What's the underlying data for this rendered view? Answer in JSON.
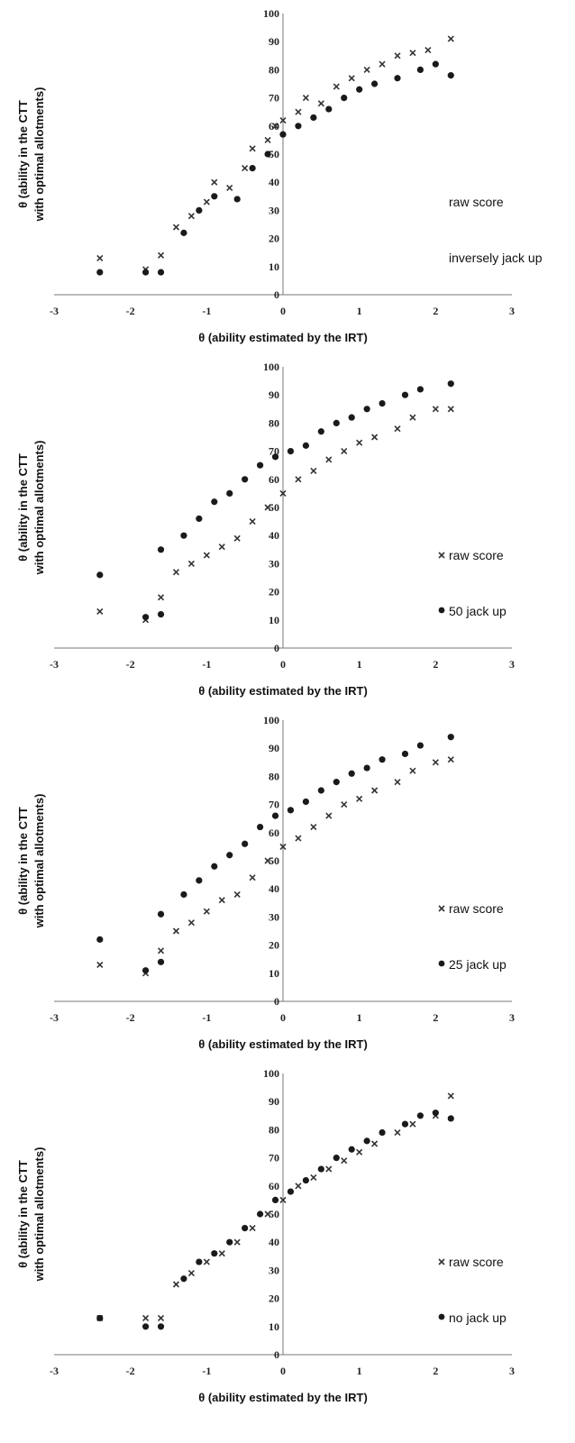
{
  "shared": {
    "xlabel": "θ (ability estimated by the IRT)",
    "ylabel_line1": "θ (ability  in the CTT",
    "ylabel_line2": "with optimal allotments)"
  },
  "chart_data": [
    {
      "type": "scatter",
      "xlim": [
        -3,
        3
      ],
      "ylim": [
        0,
        100
      ],
      "xticks": [
        "-3",
        "-2",
        "-1",
        "0",
        "1",
        "2",
        "3"
      ],
      "yticks": [
        "0",
        "10",
        "20",
        "30",
        "40",
        "50",
        "60",
        "70",
        "80",
        "90",
        "100"
      ],
      "xlabel": "θ (ability estimated by the IRT)",
      "ylabel": "θ (ability  in the CTT with optimal allotments)",
      "legend": [
        "raw score",
        "inversely jack up"
      ],
      "legend_position": "right",
      "series": [
        {
          "name": "raw score",
          "marker": "x",
          "points": [
            [
              -2.4,
              13
            ],
            [
              -1.8,
              9
            ],
            [
              -1.6,
              14
            ],
            [
              -1.4,
              24
            ],
            [
              -1.2,
              28
            ],
            [
              -1.0,
              33
            ],
            [
              -0.9,
              40
            ],
            [
              -0.7,
              38
            ],
            [
              -0.5,
              45
            ],
            [
              -0.4,
              52
            ],
            [
              -0.2,
              55
            ],
            [
              -0.1,
              60
            ],
            [
              0.0,
              62
            ],
            [
              0.2,
              65
            ],
            [
              0.3,
              70
            ],
            [
              0.5,
              68
            ],
            [
              0.7,
              74
            ],
            [
              0.9,
              77
            ],
            [
              1.1,
              80
            ],
            [
              1.3,
              82
            ],
            [
              1.5,
              85
            ],
            [
              1.7,
              86
            ],
            [
              1.9,
              87
            ],
            [
              2.2,
              91
            ]
          ]
        },
        {
          "name": "inversely jack up",
          "marker": "o",
          "points": [
            [
              -2.4,
              8
            ],
            [
              -1.8,
              8
            ],
            [
              -1.6,
              8
            ],
            [
              -1.3,
              22
            ],
            [
              -1.1,
              30
            ],
            [
              -0.9,
              35
            ],
            [
              -0.6,
              34
            ],
            [
              -0.4,
              45
            ],
            [
              -0.2,
              50
            ],
            [
              0.0,
              57
            ],
            [
              0.2,
              60
            ],
            [
              0.4,
              63
            ],
            [
              0.6,
              66
            ],
            [
              0.8,
              70
            ],
            [
              1.0,
              73
            ],
            [
              1.2,
              75
            ],
            [
              1.5,
              77
            ],
            [
              1.8,
              80
            ],
            [
              2.0,
              82
            ],
            [
              2.2,
              78
            ]
          ]
        }
      ]
    },
    {
      "type": "scatter",
      "xlim": [
        -3,
        3
      ],
      "ylim": [
        0,
        100
      ],
      "xticks": [
        "-3",
        "-2",
        "-1",
        "0",
        "1",
        "2",
        "3"
      ],
      "yticks": [
        "0",
        "10",
        "20",
        "30",
        "40",
        "50",
        "60",
        "70",
        "80",
        "90",
        "100"
      ],
      "xlabel": "θ (ability estimated by the IRT)",
      "ylabel": "θ (ability  in the CTT with optimal allotments)",
      "legend": [
        "raw score",
        "50 jack up"
      ],
      "legend_position": "right",
      "series": [
        {
          "name": "raw score",
          "marker": "x",
          "points": [
            [
              -2.4,
              13
            ],
            [
              -1.8,
              10
            ],
            [
              -1.6,
              18
            ],
            [
              -1.4,
              27
            ],
            [
              -1.2,
              30
            ],
            [
              -1.0,
              33
            ],
            [
              -0.8,
              36
            ],
            [
              -0.6,
              39
            ],
            [
              -0.4,
              45
            ],
            [
              -0.2,
              50
            ],
            [
              0.0,
              55
            ],
            [
              0.2,
              60
            ],
            [
              0.4,
              63
            ],
            [
              0.6,
              67
            ],
            [
              0.8,
              70
            ],
            [
              1.0,
              73
            ],
            [
              1.2,
              75
            ],
            [
              1.5,
              78
            ],
            [
              1.7,
              82
            ],
            [
              2.0,
              85
            ],
            [
              2.2,
              85
            ]
          ]
        },
        {
          "name": "50 jack up",
          "marker": "o",
          "points": [
            [
              -2.4,
              26
            ],
            [
              -1.8,
              11
            ],
            [
              -1.6,
              12
            ],
            [
              -1.6,
              35
            ],
            [
              -1.3,
              40
            ],
            [
              -1.1,
              46
            ],
            [
              -0.9,
              52
            ],
            [
              -0.7,
              55
            ],
            [
              -0.5,
              60
            ],
            [
              -0.3,
              65
            ],
            [
              -0.1,
              68
            ],
            [
              0.1,
              70
            ],
            [
              0.3,
              72
            ],
            [
              0.5,
              77
            ],
            [
              0.7,
              80
            ],
            [
              0.9,
              82
            ],
            [
              1.1,
              85
            ],
            [
              1.3,
              87
            ],
            [
              1.6,
              90
            ],
            [
              1.8,
              92
            ],
            [
              2.2,
              94
            ]
          ]
        }
      ]
    },
    {
      "type": "scatter",
      "xlim": [
        -3,
        3
      ],
      "ylim": [
        0,
        100
      ],
      "xticks": [
        "-3",
        "-2",
        "-1",
        "0",
        "1",
        "2",
        "3"
      ],
      "yticks": [
        "0",
        "10",
        "20",
        "30",
        "40",
        "50",
        "60",
        "70",
        "80",
        "90",
        "100"
      ],
      "xlabel": "θ (ability estimated by the IRT)",
      "ylabel": "θ (ability  in the CTT with optimal allotments)",
      "legend": [
        "raw score",
        "25 jack up"
      ],
      "legend_position": "right",
      "series": [
        {
          "name": "raw score",
          "marker": "x",
          "points": [
            [
              -2.4,
              13
            ],
            [
              -1.8,
              10
            ],
            [
              -1.6,
              18
            ],
            [
              -1.4,
              25
            ],
            [
              -1.2,
              28
            ],
            [
              -1.0,
              32
            ],
            [
              -0.8,
              36
            ],
            [
              -0.6,
              38
            ],
            [
              -0.4,
              44
            ],
            [
              -0.2,
              50
            ],
            [
              0.0,
              55
            ],
            [
              0.2,
              58
            ],
            [
              0.4,
              62
            ],
            [
              0.6,
              66
            ],
            [
              0.8,
              70
            ],
            [
              1.0,
              72
            ],
            [
              1.2,
              75
            ],
            [
              1.5,
              78
            ],
            [
              1.7,
              82
            ],
            [
              2.0,
              85
            ],
            [
              2.2,
              86
            ]
          ]
        },
        {
          "name": "25 jack up",
          "marker": "o",
          "points": [
            [
              -2.4,
              22
            ],
            [
              -1.8,
              11
            ],
            [
              -1.6,
              14
            ],
            [
              -1.6,
              31
            ],
            [
              -1.3,
              38
            ],
            [
              -1.1,
              43
            ],
            [
              -0.9,
              48
            ],
            [
              -0.7,
              52
            ],
            [
              -0.5,
              56
            ],
            [
              -0.3,
              62
            ],
            [
              -0.1,
              66
            ],
            [
              0.1,
              68
            ],
            [
              0.3,
              71
            ],
            [
              0.5,
              75
            ],
            [
              0.7,
              78
            ],
            [
              0.9,
              81
            ],
            [
              1.1,
              83
            ],
            [
              1.3,
              86
            ],
            [
              1.6,
              88
            ],
            [
              1.8,
              91
            ],
            [
              2.2,
              94
            ]
          ]
        }
      ]
    },
    {
      "type": "scatter",
      "xlim": [
        -3,
        3
      ],
      "ylim": [
        0,
        100
      ],
      "xticks": [
        "-3",
        "-2",
        "-1",
        "0",
        "1",
        "2",
        "3"
      ],
      "yticks": [
        "0",
        "10",
        "20",
        "30",
        "40",
        "50",
        "60",
        "70",
        "80",
        "90",
        "100"
      ],
      "xlabel": "θ (ability estimated by the IRT)",
      "ylabel": "θ (ability  in the CTT with optimal allotments)",
      "legend": [
        "raw score",
        "no jack up"
      ],
      "legend_position": "right",
      "series": [
        {
          "name": "raw score",
          "marker": "x",
          "points": [
            [
              -2.4,
              13
            ],
            [
              -1.8,
              13
            ],
            [
              -1.6,
              13
            ],
            [
              -1.4,
              25
            ],
            [
              -1.2,
              29
            ],
            [
              -1.0,
              33
            ],
            [
              -0.8,
              36
            ],
            [
              -0.6,
              40
            ],
            [
              -0.4,
              45
            ],
            [
              -0.2,
              50
            ],
            [
              0.0,
              55
            ],
            [
              0.2,
              60
            ],
            [
              0.4,
              63
            ],
            [
              0.6,
              66
            ],
            [
              0.8,
              69
            ],
            [
              1.0,
              72
            ],
            [
              1.2,
              75
            ],
            [
              1.5,
              79
            ],
            [
              1.7,
              82
            ],
            [
              2.0,
              85
            ],
            [
              2.2,
              92
            ]
          ]
        },
        {
          "name": "no jack up",
          "marker": "o",
          "points": [
            [
              -2.4,
              13
            ],
            [
              -1.8,
              10
            ],
            [
              -1.6,
              10
            ],
            [
              -1.3,
              27
            ],
            [
              -1.1,
              33
            ],
            [
              -0.9,
              36
            ],
            [
              -0.7,
              40
            ],
            [
              -0.5,
              45
            ],
            [
              -0.3,
              50
            ],
            [
              -0.1,
              55
            ],
            [
              0.1,
              58
            ],
            [
              0.3,
              62
            ],
            [
              0.5,
              66
            ],
            [
              0.7,
              70
            ],
            [
              0.9,
              73
            ],
            [
              1.1,
              76
            ],
            [
              1.3,
              79
            ],
            [
              1.6,
              82
            ],
            [
              1.8,
              85
            ],
            [
              2.0,
              86
            ],
            [
              2.2,
              84
            ]
          ]
        }
      ]
    }
  ]
}
